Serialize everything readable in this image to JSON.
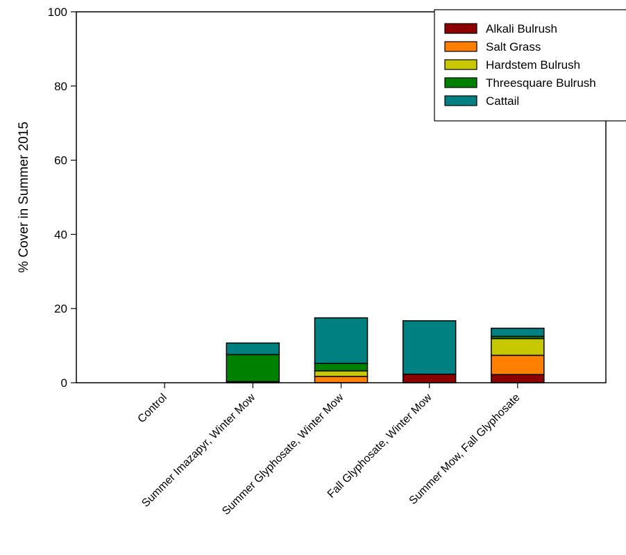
{
  "chart_data": {
    "type": "bar",
    "stacked": true,
    "title": "",
    "xlabel": "",
    "ylabel": "% Cover in Summer 2015",
    "ylim": [
      0,
      100
    ],
    "yticks": [
      0,
      20,
      40,
      60,
      80,
      100
    ],
    "categories": [
      "Control",
      "Summer Imazapyr, Winter Mow",
      "Summer Glyphosate, Winter Mow",
      "Fall Glyphosate, Winter Mow",
      "Summer Mow, Fall Glyphosate"
    ],
    "series": [
      {
        "name": "Alkali Bulrush",
        "color": "#8b0000",
        "values": [
          0,
          0.3,
          0,
          2.3,
          2.2
        ]
      },
      {
        "name": "Salt Grass",
        "color": "#ff8000",
        "values": [
          0,
          0,
          1.7,
          0,
          5.2
        ]
      },
      {
        "name": "Hardstem Bulrush",
        "color": "#c8c800",
        "values": [
          0,
          0,
          1.5,
          0,
          4.5
        ]
      },
      {
        "name": "Threesquare Bulrush",
        "color": "#008000",
        "values": [
          0,
          7.3,
          2.0,
          0,
          0.6
        ]
      },
      {
        "name": "Cattail",
        "color": "#008080",
        "values": [
          0,
          3.1,
          12.3,
          14.4,
          2.2
        ]
      }
    ],
    "grid": false,
    "legend_position": "top-right"
  }
}
